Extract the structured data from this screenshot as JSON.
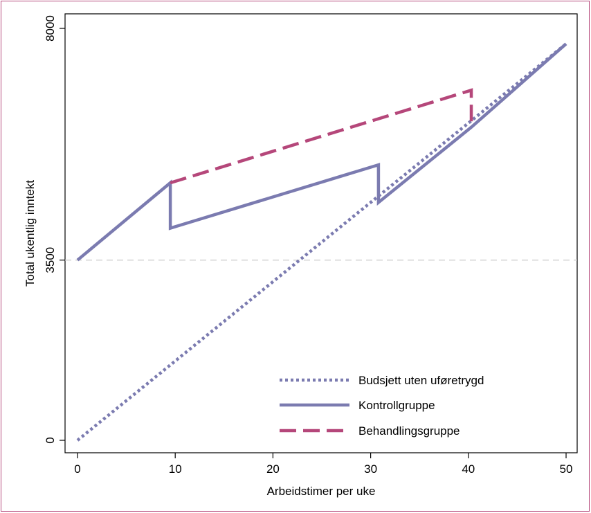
{
  "chart_data": {
    "type": "line",
    "xlabel": "Arbeidstimer per uke",
    "ylabel": "Total ukentlig inntekt",
    "xlim": [
      0,
      50
    ],
    "ylim": [
      0,
      8000
    ],
    "xticks": [
      0,
      10,
      20,
      30,
      40,
      50
    ],
    "yticks": [
      0,
      3500,
      8000
    ],
    "xtick_labels": [
      "0",
      "10",
      "20",
      "30",
      "40",
      "50"
    ],
    "ytick_labels": [
      "0",
      "3500",
      "8000"
    ],
    "reference_line": {
      "y": 3500,
      "style": "dashed",
      "color": "#cccccc"
    },
    "grid": false,
    "legend_position": "bottom-right",
    "series": [
      {
        "name": "Budsjett uten uføretrygd",
        "style": "dotted",
        "color": "#7b7bb0",
        "points": [
          [
            0,
            0
          ],
          [
            50,
            7700
          ]
        ]
      },
      {
        "name": "Kontrollgruppe",
        "style": "solid",
        "color": "#7b7bb0",
        "points": [
          [
            0,
            3500
          ],
          [
            9.5,
            5000
          ],
          [
            9.5,
            4120
          ],
          [
            30.8,
            5350
          ],
          [
            30.8,
            4620
          ],
          [
            40.3,
            6080
          ],
          [
            50,
            7700
          ]
        ]
      },
      {
        "name": "Behandlingsgruppe",
        "style": "dashed",
        "color": "#b5477a",
        "points": [
          [
            9.5,
            5000
          ],
          [
            40.3,
            6800
          ],
          [
            40.3,
            6080
          ]
        ]
      }
    ]
  }
}
